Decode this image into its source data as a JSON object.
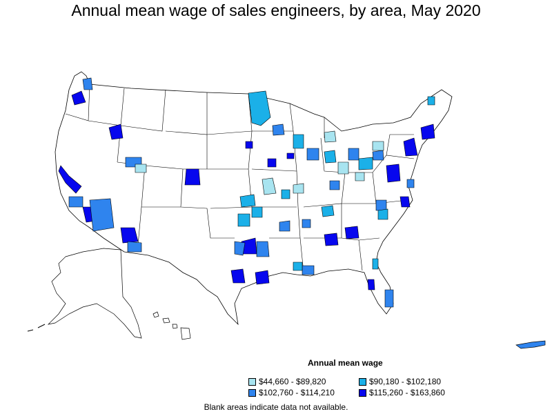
{
  "title": "Annual mean wage of sales engineers, by area, May 2020",
  "legend": {
    "title": "Annual mean wage",
    "items": [
      {
        "label": "$44,660 - $89,820",
        "color": "#a8e4f0"
      },
      {
        "label": "$90,180 - $102,180",
        "color": "#1bb0e8"
      },
      {
        "label": "$102,760 - $114,210",
        "color": "#2f84ee"
      },
      {
        "label": "$115,260 - $163,860",
        "color": "#0707ee"
      }
    ]
  },
  "footnote": "Blank areas indicate data not available.",
  "colors": {
    "outline": "#000000",
    "blank": "#ffffff"
  }
}
